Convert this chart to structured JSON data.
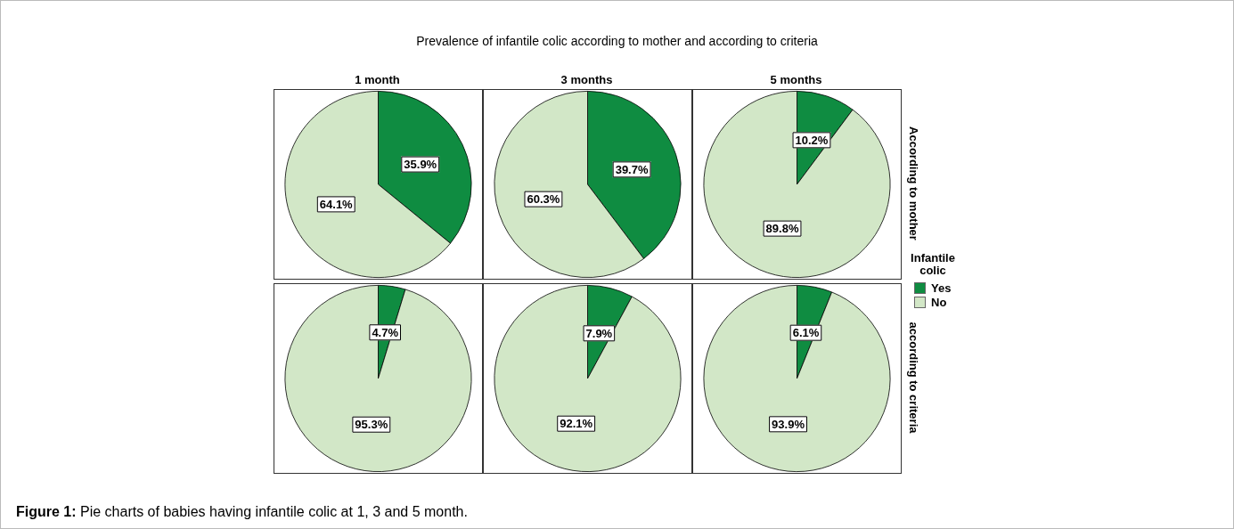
{
  "chart_data": [
    {
      "type": "other",
      "title": "Prevalence of infantile colic according to mother and according to criteria",
      "annotations": [
        "Figure 1: Pie charts of babies having infantile colic at 1, 3 and 5 month."
      ]
    },
    {
      "type": "pie",
      "title": "1 month",
      "categories": [
        null,
        null
      ],
      "values": [
        35.9,
        64.1
      ],
      "colors": [
        "#0f8c41",
        "#d2e7c7"
      ],
      "value_labels": [
        "35.9%",
        "64.1%"
      ]
    },
    {
      "type": "pie",
      "title": "3 months",
      "categories": [
        null,
        null
      ],
      "values": [
        39.7,
        60.3
      ],
      "colors": [
        "#0f8c41",
        "#d2e7c7"
      ],
      "value_labels": [
        "39.7%",
        "60.3%"
      ]
    },
    {
      "type": "pie",
      "title": "5 months",
      "y2label": "According to mother",
      "legend_title": "Infantile colic",
      "legend": "right",
      "categories": [
        "Yes",
        "No"
      ],
      "values": [
        10.2,
        89.8
      ],
      "colors": [
        "#0f8c41",
        "#d2e7c7"
      ],
      "value_labels": [
        "10.2%",
        "89.8%"
      ]
    },
    {
      "type": "pie",
      "categories": [
        null,
        null
      ],
      "values": [
        4.7,
        95.3
      ],
      "colors": [
        "#0f8c41",
        "#d2e7c7"
      ],
      "value_labels": [
        "4.7%",
        "95.3%"
      ]
    },
    {
      "type": "pie",
      "categories": [
        null,
        null
      ],
      "values": [
        7.9,
        92.1
      ],
      "colors": [
        "#0f8c41",
        "#d2e7c7"
      ],
      "value_labels": [
        "7.9%",
        "92.1%"
      ]
    },
    {
      "type": "pie",
      "y2label": "according to criteria",
      "categories": [
        null,
        null
      ],
      "values": [
        6.1,
        93.9
      ],
      "colors": [
        "#0f8c41",
        "#d2e7c7"
      ],
      "value_labels": [
        "6.1%",
        "93.9%"
      ]
    }
  ]
}
